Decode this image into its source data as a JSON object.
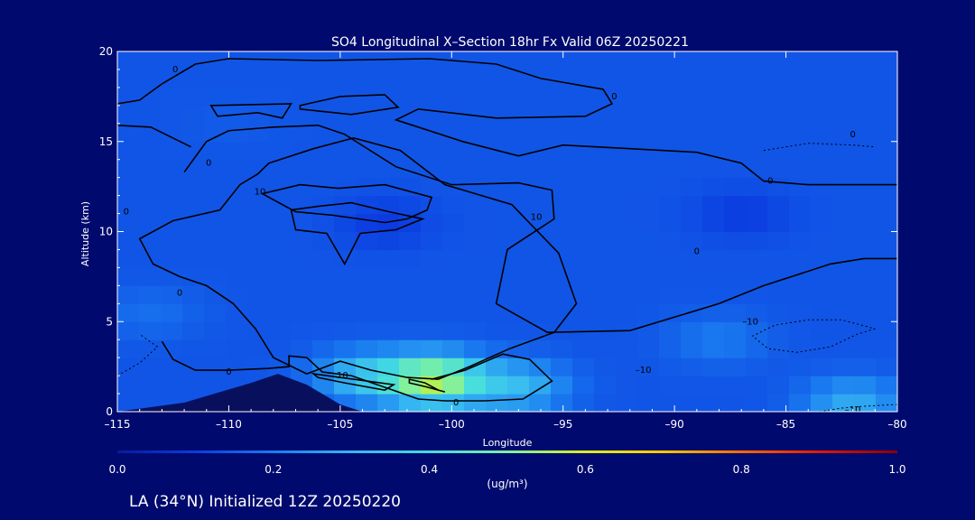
{
  "chart_data": {
    "type": "heatmap",
    "title": "SO4 Longitudinal X–Section 18hr  Fx Valid 06Z 20250221",
    "xlabel": "Longitude",
    "ylabel": "Altitude (km)",
    "xlim": [
      -115,
      -80
    ],
    "ylim": [
      0,
      20
    ],
    "x_ticks": [
      -115,
      -110,
      -105,
      -100,
      -95,
      -90,
      -85,
      -80
    ],
    "x_tick_labels": [
      "–115",
      "–110",
      "–105",
      "–100",
      "–95",
      "–90",
      "–85",
      "–80"
    ],
    "y_ticks": [
      0,
      5,
      10,
      15,
      20
    ],
    "y_tick_labels": [
      "0",
      "5",
      "10",
      "15",
      "20"
    ],
    "colorbar": {
      "min": 0.0,
      "max": 1.0,
      "ticks": [
        0.0,
        0.2,
        0.4,
        0.6,
        0.8,
        1.0
      ],
      "tick_labels": [
        "0.0",
        "0.2",
        "0.4",
        "0.6",
        "0.8",
        "1.0"
      ],
      "unit_label": "(ug/m³)",
      "colors": [
        "#0a1aa0",
        "#0b3be0",
        "#1a7cf0",
        "#36b7f2",
        "#44dde0",
        "#7ef0a0",
        "#d8f020",
        "#ffc800",
        "#ff6a00",
        "#e01800",
        "#8a0000"
      ]
    },
    "field": {
      "background_value": 0.14,
      "features": [
        {
          "name": "max-near-surface-plume",
          "lon": -100.8,
          "alt": 1.8,
          "value": 0.55
        },
        {
          "name": "plume-west-arm",
          "lon": -104.0,
          "alt": 2.0,
          "value": 0.3
        },
        {
          "name": "plume-east-arm",
          "lon": -97.0,
          "alt": 1.4,
          "value": 0.3
        },
        {
          "name": "east-surface-layer",
          "lon": -82.0,
          "alt": 0.5,
          "value": 0.28
        },
        {
          "name": "mid-level-east",
          "lon": -88.0,
          "alt": 4.0,
          "value": 0.2
        },
        {
          "name": "west-low",
          "lon": -113.5,
          "alt": 5.5,
          "value": 0.18
        },
        {
          "name": "upper-west",
          "lon": -110.0,
          "alt": 16.0,
          "value": 0.15
        },
        {
          "name": "upper-core-low",
          "lon": -103.0,
          "alt": 10.5,
          "value": 0.1
        },
        {
          "name": "upper-east-low",
          "lon": -87.0,
          "alt": 11.0,
          "value": 0.1
        }
      ]
    },
    "terrain": [
      {
        "lon": -115.0,
        "alt": 0.0
      },
      {
        "lon": -112.0,
        "alt": 0.5
      },
      {
        "lon": -109.0,
        "alt": 1.6
      },
      {
        "lon": -107.8,
        "alt": 2.1
      },
      {
        "lon": -106.5,
        "alt": 1.5
      },
      {
        "lon": -105.0,
        "alt": 0.4
      },
      {
        "lon": -104.0,
        "alt": 0.0
      }
    ],
    "contours": [
      {
        "level": "0",
        "style": "solid",
        "closed": false,
        "points": [
          [
            -115,
            17.1
          ],
          [
            -114,
            17.3
          ],
          [
            -113,
            18.2
          ],
          [
            -111.5,
            19.3
          ],
          [
            -110,
            19.6
          ],
          [
            -106,
            19.5
          ],
          [
            -101,
            19.6
          ],
          [
            -98,
            19.3
          ],
          [
            -96,
            18.5
          ],
          [
            -93.2,
            17.9
          ],
          [
            -92.8,
            17.1
          ],
          [
            -94,
            16.4
          ],
          [
            -98,
            16.3
          ],
          [
            -101.5,
            16.8
          ],
          [
            -102.5,
            16.2
          ],
          [
            -99.5,
            15.0
          ],
          [
            -97,
            14.2
          ],
          [
            -95,
            14.8
          ],
          [
            -92,
            14.6
          ],
          [
            -89,
            14.4
          ],
          [
            -87,
            13.8
          ],
          [
            -86,
            12.8
          ],
          [
            -84,
            12.6
          ],
          [
            -80,
            12.6
          ]
        ]
      },
      {
        "level": "0",
        "style": "solid",
        "closed": false,
        "points": [
          [
            -115,
            15.9
          ],
          [
            -113.5,
            15.8
          ],
          [
            -111.7,
            14.7
          ]
        ]
      },
      {
        "level": "0",
        "style": "solid",
        "closed": false,
        "points": [
          [
            -112,
            13.3
          ],
          [
            -111,
            15.0
          ],
          [
            -110,
            15.6
          ],
          [
            -108,
            15.8
          ],
          [
            -106,
            15.9
          ],
          [
            -104.8,
            15.4
          ],
          [
            -102.5,
            13.6
          ],
          [
            -100,
            12.6
          ],
          [
            -97,
            12.7
          ],
          [
            -95.5,
            12.3
          ],
          [
            -95.4,
            10.7
          ],
          [
            -97.5,
            9.0
          ],
          [
            -98,
            6.0
          ],
          [
            -95.7,
            4.4
          ],
          [
            -92,
            4.5
          ],
          [
            -88,
            6.0
          ],
          [
            -86,
            7.0
          ],
          [
            -83,
            8.2
          ],
          [
            -81.5,
            8.5
          ],
          [
            -80,
            8.5
          ]
        ]
      },
      {
        "level": "0",
        "style": "solid",
        "closed": true,
        "points": [
          [
            -110.8,
            17.0
          ],
          [
            -107.2,
            17.1
          ],
          [
            -107.6,
            16.3
          ],
          [
            -108.7,
            16.6
          ],
          [
            -110.5,
            16.4
          ]
        ]
      },
      {
        "level": "0",
        "style": "solid",
        "closed": true,
        "points": [
          [
            -106.8,
            16.8
          ],
          [
            -104.5,
            16.5
          ],
          [
            -102.4,
            16.9
          ],
          [
            -103.0,
            17.6
          ],
          [
            -105,
            17.5
          ],
          [
            -106.8,
            17.0
          ]
        ]
      },
      {
        "level": "10",
        "style": "solid",
        "closed": true,
        "points": [
          [
            -108.2,
            13.8
          ],
          [
            -106.2,
            14.6
          ],
          [
            -104.4,
            15.2
          ],
          [
            -102.3,
            14.5
          ],
          [
            -100.3,
            12.6
          ],
          [
            -97.3,
            11.5
          ],
          [
            -95.2,
            8.8
          ],
          [
            -94.4,
            6.0
          ],
          [
            -95.4,
            4.4
          ],
          [
            -97.4,
            3.5
          ],
          [
            -99.2,
            2.5
          ],
          [
            -100.6,
            1.8
          ],
          [
            -102,
            1.9
          ],
          [
            -103.6,
            2.3
          ],
          [
            -105,
            2.8
          ],
          [
            -106.5,
            2.1
          ],
          [
            -108,
            3.0
          ],
          [
            -108.8,
            4.6
          ],
          [
            -109.8,
            6.0
          ],
          [
            -111,
            7.0
          ],
          [
            -112.2,
            7.5
          ],
          [
            -113.4,
            8.2
          ],
          [
            -114,
            9.6
          ],
          [
            -112.5,
            10.6
          ],
          [
            -110.4,
            11.2
          ],
          [
            -109.5,
            12.6
          ],
          [
            -108.7,
            13.2
          ]
        ]
      },
      {
        "level": "10",
        "style": "solid",
        "closed": true,
        "points": [
          [
            -108.5,
            12.1
          ],
          [
            -107,
            11.1
          ],
          [
            -105.3,
            10.9
          ],
          [
            -103,
            10.5
          ],
          [
            -102,
            10.7
          ],
          [
            -101.1,
            11.2
          ],
          [
            -100.9,
            11.9
          ],
          [
            -103,
            12.6
          ],
          [
            -105.1,
            12.4
          ],
          [
            -106.8,
            12.6
          ]
        ]
      },
      {
        "level": "10",
        "style": "solid",
        "closed": true,
        "points": [
          [
            -107.2,
            11.2
          ],
          [
            -106,
            11.4
          ],
          [
            -104.5,
            11.6
          ],
          [
            -102.8,
            11.1
          ],
          [
            -101.3,
            10.7
          ],
          [
            -102.5,
            10.1
          ],
          [
            -104.1,
            9.9
          ],
          [
            -104.8,
            8.2
          ],
          [
            -105.6,
            9.9
          ],
          [
            -107.0,
            10.1
          ]
        ]
      },
      {
        "level": "0",
        "style": "solid",
        "closed": false,
        "points": [
          [
            -113,
            3.9
          ],
          [
            -112.5,
            2.9
          ],
          [
            -111.5,
            2.3
          ],
          [
            -110,
            2.3
          ],
          [
            -108.2,
            2.4
          ],
          [
            -107.3,
            2.5
          ],
          [
            -107.3,
            3.1
          ],
          [
            -106.5,
            3.0
          ],
          [
            -105.8,
            2.2
          ],
          [
            -104.5,
            2.0
          ],
          [
            -102.4,
            1.1
          ],
          [
            -101.5,
            0.7
          ],
          [
            -100.3,
            0.6
          ],
          [
            -98.5,
            0.6
          ],
          [
            -96.8,
            0.7
          ],
          [
            -95.5,
            1.7
          ],
          [
            -96.5,
            2.9
          ],
          [
            -97.7,
            3.2
          ],
          [
            -99.4,
            2.3
          ],
          [
            -100.9,
            1.8
          ]
        ]
      },
      {
        "level": "10",
        "style": "solid",
        "closed": true,
        "points": [
          [
            -106.2,
            2.1
          ],
          [
            -104.4,
            1.8
          ],
          [
            -102.6,
            1.5
          ],
          [
            -103.0,
            1.2
          ],
          [
            -104.8,
            1.6
          ],
          [
            -106.0,
            1.9
          ]
        ]
      },
      {
        "level": "10",
        "style": "solid",
        "closed": true,
        "points": [
          [
            -101.9,
            1.8
          ],
          [
            -101.2,
            1.6
          ],
          [
            -100.6,
            1.2
          ],
          [
            -100.3,
            1.1
          ],
          [
            -101.2,
            1.4
          ],
          [
            -101.9,
            1.6
          ]
        ]
      },
      {
        "level": "-10",
        "style": "dashed",
        "closed": false,
        "points": [
          [
            -81,
            4.6
          ],
          [
            -81.8,
            4.3
          ],
          [
            -83,
            3.6
          ],
          [
            -84.5,
            3.3
          ],
          [
            -85.8,
            3.5
          ],
          [
            -86.5,
            4.2
          ],
          [
            -85.5,
            4.8
          ],
          [
            -84,
            5.1
          ],
          [
            -82.5,
            5.1
          ],
          [
            -81,
            4.6
          ]
        ]
      },
      {
        "level": "-10",
        "style": "dashed",
        "closed": false,
        "points": [
          [
            -115,
            2.0
          ],
          [
            -114,
            2.7
          ],
          [
            -113.2,
            3.6
          ],
          [
            -114,
            4.3
          ]
        ]
      },
      {
        "level": "-10",
        "style": "dashed",
        "closed": false,
        "points": [
          [
            -86,
            14.5
          ],
          [
            -84,
            14.9
          ],
          [
            -82,
            14.8
          ],
          [
            -81,
            14.7
          ]
        ]
      },
      {
        "level": "-10",
        "style": "dashed",
        "closed": false,
        "points": [
          [
            -83.5,
            0.0
          ],
          [
            -82.5,
            0.2
          ],
          [
            -81.5,
            0.3
          ],
          [
            -80,
            0.4
          ]
        ]
      }
    ],
    "contour_labels": [
      {
        "text": "0",
        "lon": -112.4,
        "alt": 19.0
      },
      {
        "text": "0",
        "lon": -92.7,
        "alt": 17.5
      },
      {
        "text": "0",
        "lon": -82.0,
        "alt": 15.4
      },
      {
        "text": "0",
        "lon": -110.9,
        "alt": 13.8
      },
      {
        "text": "0",
        "lon": -85.7,
        "alt": 12.8
      },
      {
        "text": "0",
        "lon": -89.0,
        "alt": 8.9
      },
      {
        "text": "0",
        "lon": -114.6,
        "alt": 11.1
      },
      {
        "text": "0",
        "lon": -112.2,
        "alt": 6.6
      },
      {
        "text": "0",
        "lon": -110.0,
        "alt": 2.2
      },
      {
        "text": "0",
        "lon": -99.8,
        "alt": 0.5
      },
      {
        "text": "10",
        "lon": -108.6,
        "alt": 12.2
      },
      {
        "text": "10",
        "lon": -96.2,
        "alt": 10.8
      },
      {
        "text": "10",
        "lon": -104.9,
        "alt": 2.0
      },
      {
        "text": "–10",
        "lon": -86.6,
        "alt": 5.0
      },
      {
        "text": "–10",
        "lon": -82.0,
        "alt": 0.1
      },
      {
        "text": "–10",
        "lon": -91.4,
        "alt": 2.3
      }
    ]
  },
  "footer": {
    "label": "LA (34°N) Initialized 12Z 20250220"
  }
}
